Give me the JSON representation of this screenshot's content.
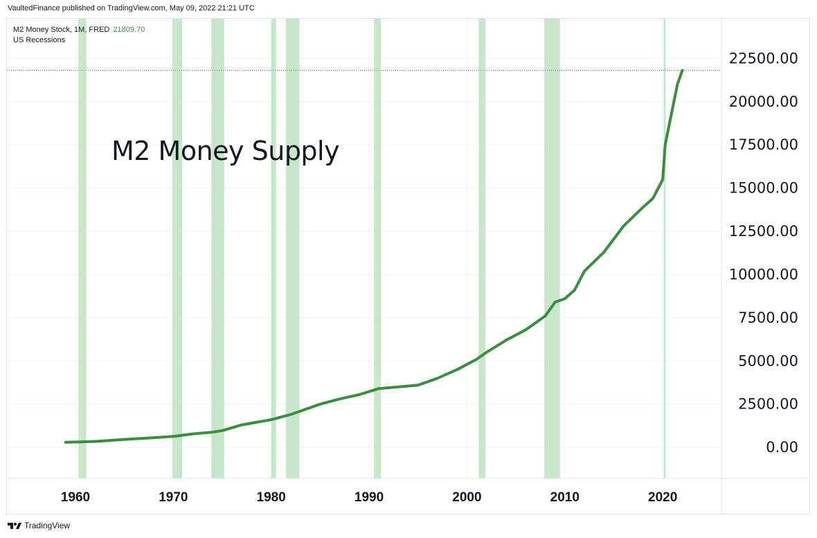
{
  "header": {
    "published": "VaultedFinance published on TradingView.com, May 09, 2022 21:21 UTC"
  },
  "legend": {
    "symbol": "M2 Money Stock, 1M, FRED",
    "last_value": "21809.70",
    "recessions_label": "US Recessions"
  },
  "overlay_title": "M2 Money Supply",
  "footer": {
    "brand": "TradingView",
    "logo": "tradingview-logo-icon"
  },
  "colors": {
    "line": "#388e3c",
    "recession": "#c8e6c9",
    "last_value_line": "#388e3c",
    "grid": "#f0f3fa"
  },
  "chart_data": {
    "type": "line",
    "series": [
      {
        "name": "M2 Money Stock",
        "x": [
          1959.0,
          1962.0,
          1965.0,
          1968.0,
          1970.0,
          1972.0,
          1974.0,
          1975.0,
          1977.0,
          1980.0,
          1982.0,
          1983.0,
          1985.0,
          1987.0,
          1989.0,
          1991.0,
          1993.0,
          1995.0,
          1997.0,
          1999.0,
          2001.0,
          2002.0,
          2004.0,
          2006.0,
          2008.0,
          2009.0,
          2010.0,
          2011.0,
          2012.0,
          2014.0,
          2016.0,
          2018.0,
          2019.0,
          2020.0,
          2020.25,
          2020.5,
          2021.0,
          2021.5,
          2022.0
        ],
        "y": [
          290,
          340,
          460,
          560,
          630,
          780,
          880,
          970,
          1300,
          1600,
          1900,
          2100,
          2500,
          2800,
          3050,
          3400,
          3500,
          3600,
          4000,
          4500,
          5100,
          5500,
          6200,
          6800,
          7600,
          8400,
          8600,
          9100,
          10200,
          11300,
          12800,
          13900,
          14400,
          15500,
          17500,
          18200,
          19600,
          21000,
          21809.7
        ]
      }
    ],
    "recessions": [
      [
        1960.3,
        1961.1
      ],
      [
        1969.9,
        1970.9
      ],
      [
        1973.9,
        1975.2
      ],
      [
        1980.0,
        1980.5
      ],
      [
        1981.5,
        1982.9
      ],
      [
        1990.5,
        1991.2
      ],
      [
        2001.2,
        2001.9
      ],
      [
        2007.9,
        2009.5
      ],
      [
        2020.1,
        2020.3
      ]
    ],
    "x_ticks": [
      "1960",
      "1970",
      "1980",
      "1990",
      "2000",
      "2010",
      "2020"
    ],
    "y_ticks": [
      "0.00",
      "2500.00",
      "5000.00",
      "7500.00",
      "10000.00",
      "12500.00",
      "15000.00",
      "17500.00",
      "20000.00",
      "22500.00"
    ],
    "xlim": [
      1953,
      2026
    ],
    "ylim": [
      -1800,
      24800
    ],
    "last_value": 21809.7,
    "grid": true,
    "legend_position": "top-left"
  }
}
